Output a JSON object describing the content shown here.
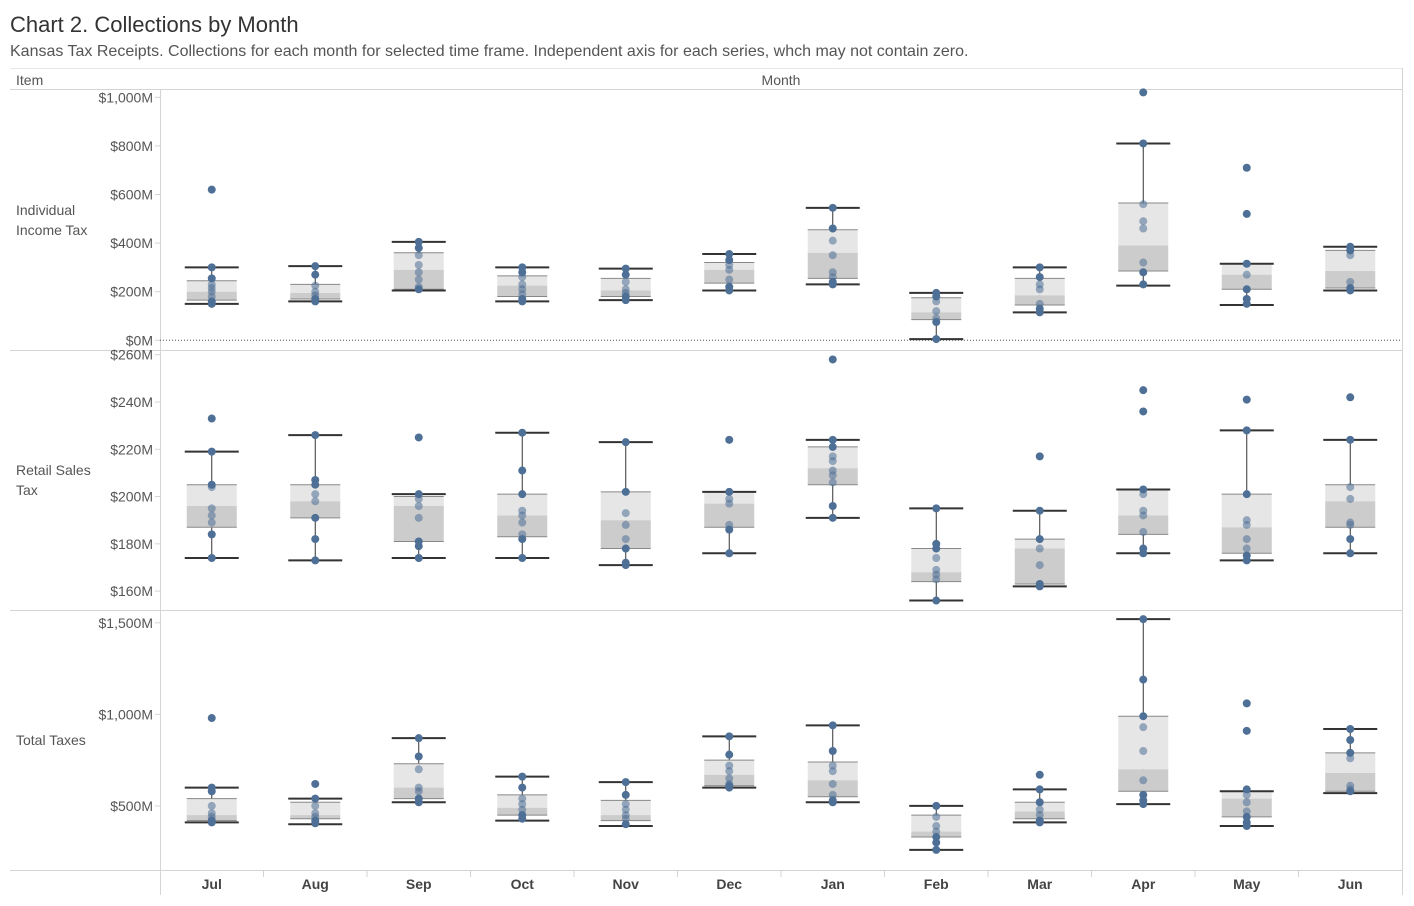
{
  "title": "Chart 2. Collections by Month",
  "subtitle": "Kansas Tax Receipts. Collections for each month for selected time frame. Independent axis for each series, whch may not contain zero.",
  "chart_data": {
    "type": "boxplot",
    "row_header": "Item",
    "column_header": "Month",
    "months": [
      "Jul",
      "Aug",
      "Sep",
      "Oct",
      "Nov",
      "Dec",
      "Jan",
      "Feb",
      "Mar",
      "Apr",
      "May",
      "Jun"
    ],
    "colors": {
      "point": "#4e6f96",
      "box_upper": "#e6e6e6",
      "box_lower": "#cccccc",
      "whisker": "#333333",
      "divider": "#d4d4d4"
    },
    "panels": [
      {
        "name": "Individual\nIncome Tax",
        "unit": "$M",
        "yrange": [
          -40,
          1030
        ],
        "ticks": [
          0,
          200,
          400,
          600,
          800,
          1000
        ],
        "tick_labels": [
          "$0M",
          "$200M",
          "$400M",
          "$600M",
          "$800M",
          "$1,000M"
        ],
        "zero_line": true,
        "boxes": [
          {
            "month": "Jul",
            "min": 150,
            "q1": 165,
            "median": 200,
            "q3": 245,
            "max": 300,
            "points": [
              620,
              300,
              255,
              230,
              215,
              200,
              180,
              160,
              150
            ]
          },
          {
            "month": "Aug",
            "min": 160,
            "q1": 170,
            "median": 195,
            "q3": 230,
            "max": 305,
            "points": [
              305,
              270,
              225,
              200,
              185,
              170,
              160
            ]
          },
          {
            "month": "Sep",
            "min": 205,
            "q1": 210,
            "median": 290,
            "q3": 360,
            "max": 405,
            "points": [
              405,
              380,
              350,
              310,
              280,
              250,
              220,
              210
            ]
          },
          {
            "month": "Oct",
            "min": 160,
            "q1": 180,
            "median": 225,
            "q3": 265,
            "max": 300,
            "points": [
              300,
              280,
              260,
              230,
              210,
              190,
              170,
              160
            ]
          },
          {
            "month": "Nov",
            "min": 165,
            "q1": 180,
            "median": 205,
            "q3": 255,
            "max": 295,
            "points": [
              295,
              270,
              240,
              210,
              195,
              180,
              165
            ]
          },
          {
            "month": "Dec",
            "min": 205,
            "q1": 235,
            "median": 290,
            "q3": 320,
            "max": 355,
            "points": [
              355,
              330,
              310,
              290,
              250,
              220,
              205
            ]
          },
          {
            "month": "Jan",
            "min": 230,
            "q1": 255,
            "median": 360,
            "q3": 455,
            "max": 545,
            "points": [
              545,
              460,
              410,
              350,
              280,
              260,
              240,
              230
            ]
          },
          {
            "month": "Feb",
            "min": 5,
            "q1": 85,
            "median": 115,
            "q3": 175,
            "max": 195,
            "points": [
              195,
              180,
              160,
              120,
              90,
              75,
              5
            ]
          },
          {
            "month": "Mar",
            "min": 115,
            "q1": 145,
            "median": 185,
            "q3": 255,
            "max": 300,
            "points": [
              300,
              260,
              230,
              210,
              150,
              130,
              115
            ]
          },
          {
            "month": "Apr",
            "min": 225,
            "q1": 285,
            "median": 390,
            "q3": 565,
            "max": 810,
            "points": [
              1020,
              810,
              560,
              490,
              460,
              320,
              280,
              230
            ]
          },
          {
            "month": "May",
            "min": 145,
            "q1": 210,
            "median": 270,
            "q3": 315,
            "max": 315,
            "points": [
              710,
              520,
              315,
              270,
              210,
              170,
              150
            ]
          },
          {
            "month": "Jun",
            "min": 205,
            "q1": 215,
            "median": 285,
            "q3": 370,
            "max": 385,
            "points": [
              385,
              370,
              350,
              240,
              215,
              205
            ]
          }
        ]
      },
      {
        "name": "Retail Sales\nTax",
        "unit": "$M",
        "yrange": [
          152,
          262
        ],
        "ticks": [
          160,
          180,
          200,
          220,
          240,
          260
        ],
        "tick_labels": [
          "$160M",
          "$180M",
          "$200M",
          "$220M",
          "$240M",
          "$260M"
        ],
        "zero_line": false,
        "boxes": [
          {
            "month": "Jul",
            "min": 174,
            "q1": 187,
            "median": 196,
            "q3": 205,
            "max": 219,
            "points": [
              233,
              219,
              205,
              204,
              195,
              192,
              189,
              184,
              174
            ]
          },
          {
            "month": "Aug",
            "min": 173,
            "q1": 191,
            "median": 198,
            "q3": 205,
            "max": 226,
            "points": [
              226,
              207,
              205,
              201,
              198,
              191,
              182,
              173
            ]
          },
          {
            "month": "Sep",
            "min": 174,
            "q1": 181,
            "median": 196,
            "q3": 200,
            "max": 201,
            "points": [
              225,
              201,
              199,
              196,
              191,
              181,
              179,
              174
            ]
          },
          {
            "month": "Oct",
            "min": 174,
            "q1": 183,
            "median": 192,
            "q3": 201,
            "max": 227,
            "points": [
              227,
              211,
              201,
              194,
              192,
              189,
              184,
              182,
              174
            ]
          },
          {
            "month": "Nov",
            "min": 171,
            "q1": 178,
            "median": 190,
            "q3": 202,
            "max": 223,
            "points": [
              223,
              202,
              193,
              188,
              182,
              178,
              172,
              171
            ]
          },
          {
            "month": "Dec",
            "min": 176,
            "q1": 187,
            "median": 197,
            "q3": 202,
            "max": 202,
            "points": [
              224,
              202,
              199,
              197,
              188,
              186,
              176
            ]
          },
          {
            "month": "Jan",
            "min": 191,
            "q1": 205,
            "median": 212,
            "q3": 221,
            "max": 224,
            "points": [
              258,
              224,
              221,
              217,
              215,
              211,
              209,
              206,
              196,
              191
            ]
          },
          {
            "month": "Feb",
            "min": 156,
            "q1": 164,
            "median": 168,
            "q3": 178,
            "max": 195,
            "points": [
              195,
              180,
              178,
              174,
              169,
              167,
              165,
              156
            ]
          },
          {
            "month": "Mar",
            "min": 162,
            "q1": 163,
            "median": 178,
            "q3": 182,
            "max": 194,
            "points": [
              217,
              194,
              182,
              178,
              171,
              163,
              162
            ]
          },
          {
            "month": "Apr",
            "min": 176,
            "q1": 184,
            "median": 192,
            "q3": 203,
            "max": 203,
            "points": [
              245,
              236,
              203,
              201,
              194,
              192,
              185,
              178,
              176
            ]
          },
          {
            "month": "May",
            "min": 173,
            "q1": 176,
            "median": 187,
            "q3": 201,
            "max": 228,
            "points": [
              241,
              228,
              201,
              190,
              188,
              182,
              178,
              175,
              173
            ]
          },
          {
            "month": "Jun",
            "min": 176,
            "q1": 187,
            "median": 198,
            "q3": 205,
            "max": 224,
            "points": [
              242,
              224,
              204,
              199,
              189,
              188,
              182,
              176
            ]
          }
        ]
      },
      {
        "name": "Total Taxes",
        "unit": "$M",
        "yrange": [
          150,
          1570
        ],
        "ticks": [
          500,
          1000,
          1500
        ],
        "tick_labels": [
          "$500M",
          "$1,000M",
          "$1,500M"
        ],
        "zero_line": false,
        "boxes": [
          {
            "month": "Jul",
            "min": 410,
            "q1": 420,
            "median": 450,
            "q3": 540,
            "max": 600,
            "points": [
              980,
              600,
              580,
              500,
              460,
              440,
              420,
              410
            ]
          },
          {
            "month": "Aug",
            "min": 400,
            "q1": 430,
            "median": 450,
            "q3": 520,
            "max": 540,
            "points": [
              620,
              540,
              500,
              460,
              440,
              420,
              405
            ]
          },
          {
            "month": "Sep",
            "min": 520,
            "q1": 540,
            "median": 600,
            "q3": 730,
            "max": 870,
            "points": [
              870,
              770,
              700,
              600,
              580,
              540,
              520
            ]
          },
          {
            "month": "Oct",
            "min": 420,
            "q1": 450,
            "median": 490,
            "q3": 560,
            "max": 660,
            "points": [
              660,
              600,
              540,
              510,
              480,
              450,
              430
            ]
          },
          {
            "month": "Nov",
            "min": 390,
            "q1": 420,
            "median": 450,
            "q3": 530,
            "max": 630,
            "points": [
              630,
              560,
              510,
              480,
              450,
              430,
              400
            ]
          },
          {
            "month": "Dec",
            "min": 600,
            "q1": 610,
            "median": 670,
            "q3": 750,
            "max": 880,
            "points": [
              880,
              780,
              720,
              690,
              650,
              620,
              610,
              600
            ]
          },
          {
            "month": "Jan",
            "min": 520,
            "q1": 550,
            "median": 640,
            "q3": 740,
            "max": 940,
            "points": [
              940,
              800,
              720,
              690,
              620,
              560,
              530,
              520
            ]
          },
          {
            "month": "Feb",
            "min": 260,
            "q1": 330,
            "median": 360,
            "q3": 450,
            "max": 500,
            "points": [
              500,
              440,
              390,
              360,
              330,
              300,
              260
            ]
          },
          {
            "month": "Mar",
            "min": 410,
            "q1": 430,
            "median": 470,
            "q3": 520,
            "max": 590,
            "points": [
              670,
              590,
              520,
              480,
              450,
              420,
              410
            ]
          },
          {
            "month": "Apr",
            "min": 510,
            "q1": 580,
            "median": 700,
            "q3": 990,
            "max": 1520,
            "points": [
              1520,
              1190,
              990,
              930,
              800,
              640,
              560,
              530,
              510
            ]
          },
          {
            "month": "May",
            "min": 390,
            "q1": 440,
            "median": 540,
            "q3": 580,
            "max": 580,
            "points": [
              1060,
              910,
              590,
              560,
              520,
              470,
              440,
              410,
              390
            ]
          },
          {
            "month": "Jun",
            "min": 570,
            "q1": 580,
            "median": 680,
            "q3": 790,
            "max": 920,
            "points": [
              920,
              860,
              790,
              760,
              610,
              590,
              580
            ]
          }
        ]
      }
    ]
  }
}
